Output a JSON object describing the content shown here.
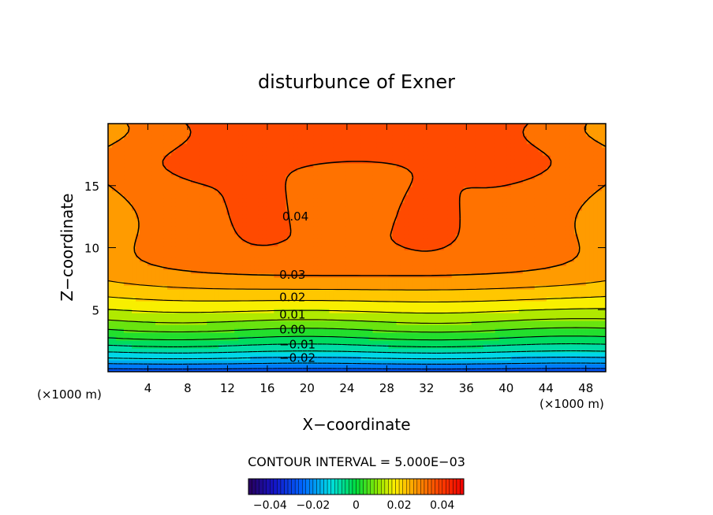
{
  "chart_data": {
    "type": "heatmap",
    "title": "disturbunce of Exner",
    "xlabel": "X−coordinate",
    "ylabel": "Z−coordinate",
    "x_unit_left": "(×1000 m)",
    "x_unit_right": "(×1000 m)",
    "xlim": [
      0,
      50
    ],
    "ylim": [
      0,
      20
    ],
    "x_ticks": [
      4,
      8,
      12,
      16,
      20,
      24,
      28,
      32,
      36,
      40,
      44,
      48
    ],
    "y_ticks": [
      5,
      10,
      15
    ],
    "contour_interval_label": "CONTOUR INTERVAL = 5.000E−03",
    "contour_labels": [
      {
        "text": "0.04",
        "x": 17.5,
        "z": 12.5
      },
      {
        "text": "0.03",
        "x": 17.2,
        "z": 7.8
      },
      {
        "text": "0.02",
        "x": 17.2,
        "z": 6.0
      },
      {
        "text": "0.01",
        "x": 17.2,
        "z": 4.6
      },
      {
        "text": "0.00",
        "x": 17.2,
        "z": 3.4
      },
      {
        "text": "−0.01",
        "x": 17.2,
        "z": 2.2
      },
      {
        "text": "−0.02",
        "x": 17.2,
        "z": 1.1
      }
    ],
    "contour_levels": [
      -0.025,
      -0.02,
      -0.015,
      -0.01,
      -0.005,
      0.0,
      0.005,
      0.01,
      0.015,
      0.02,
      0.025,
      0.03,
      0.035,
      0.04
    ],
    "colorbar": {
      "min": -0.05,
      "max": 0.05,
      "ticks": [
        "−0.04",
        "−0.02",
        "0",
        "0.02",
        "0.04"
      ]
    },
    "field_model": {
      "description_none": "",
      "min_value": -0.03,
      "max_value": 0.045
    }
  }
}
